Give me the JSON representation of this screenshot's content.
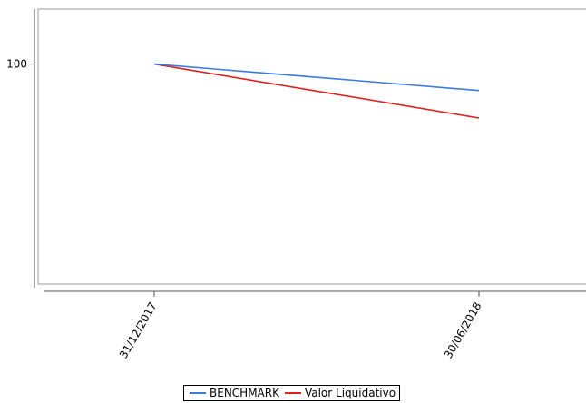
{
  "chart_data": {
    "type": "line",
    "x": [
      "31/12/2017",
      "30/06/2018"
    ],
    "y_ticks": [
      100
    ],
    "ylim": [
      80,
      105
    ],
    "grid": false,
    "legend_position": "bottom",
    "series": [
      {
        "name": "BENCHMARK",
        "color": "#3a7be0",
        "values": [
          100,
          97.6
        ]
      },
      {
        "name": "Valor Liquidativo",
        "color": "#e02020",
        "values": [
          100,
          95.1
        ]
      }
    ]
  }
}
